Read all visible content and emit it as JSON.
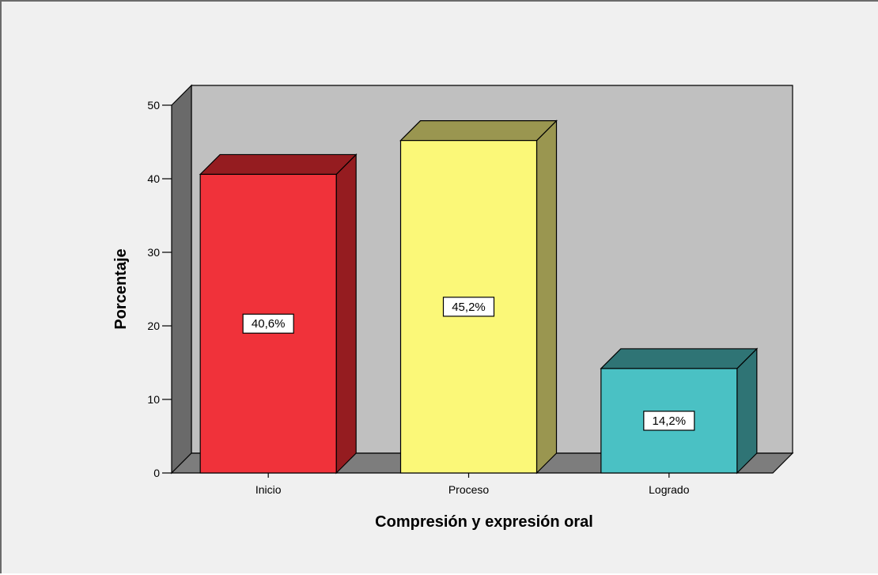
{
  "chart_data": {
    "type": "bar",
    "categories": [
      "Inicio",
      "Proceso",
      "Logrado"
    ],
    "values": [
      40.6,
      45.2,
      14.2
    ],
    "data_labels": [
      "40,6%",
      "45,2%",
      "14,2%"
    ],
    "xlabel": "Compresión y expresión oral",
    "ylabel": "Porcentaje",
    "ylim": [
      0,
      50
    ],
    "yticks": [
      0,
      10,
      20,
      30,
      40,
      50
    ],
    "three_d": true,
    "grid": false,
    "colors": {
      "bars": [
        {
          "front": "#f0323a",
          "side": "#951c20"
        },
        {
          "front": "#fbf878",
          "side": "#9a9650"
        },
        {
          "front": "#4ac1c4",
          "side": "#2f7475"
        }
      ],
      "back_wall": "#c0c0c0",
      "side_wall": "#6a6a6a",
      "floor": "#7d7d7d",
      "background": "#f0f0f0"
    }
  }
}
